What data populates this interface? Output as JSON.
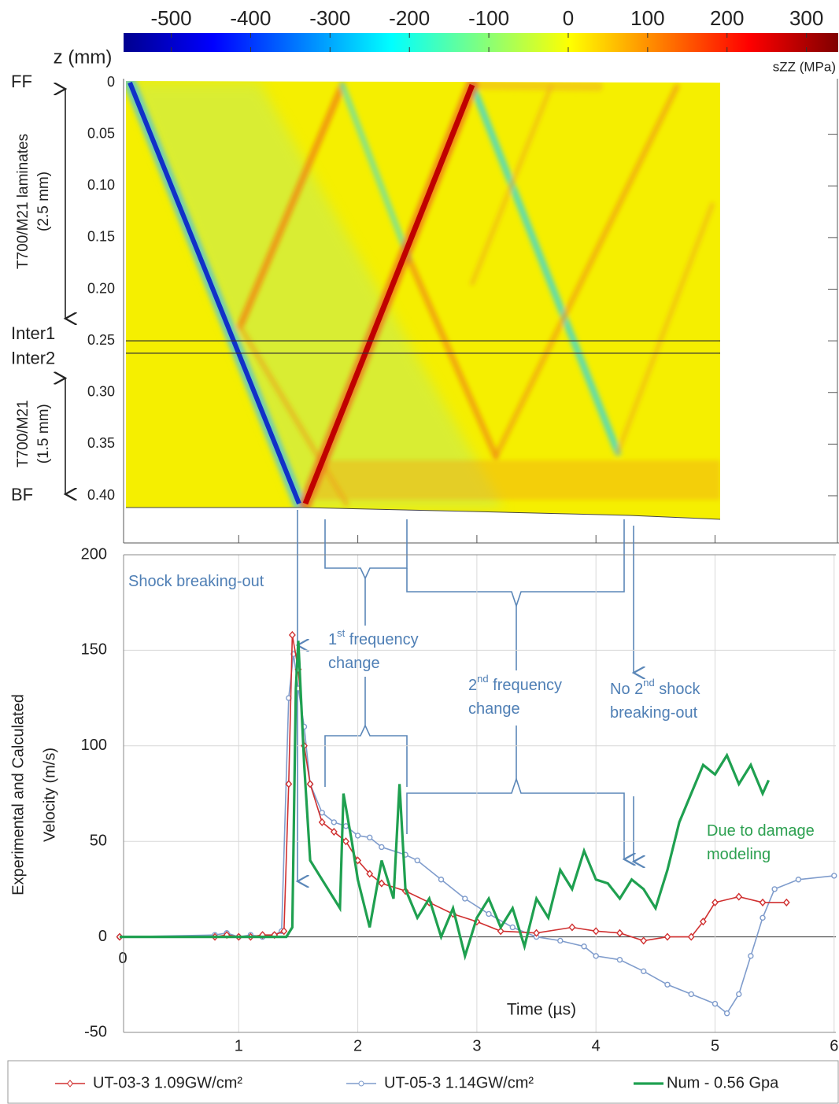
{
  "chart_data": [
    {
      "type": "heatmap",
      "colorbar_label": "sZZ (MPa)",
      "colormap": "jet",
      "clim": [
        -560,
        340
      ],
      "cticks": [
        -500,
        -400,
        -300,
        -200,
        -100,
        0,
        100,
        200,
        300
      ],
      "y_label": "z (mm)",
      "ylim": [
        0,
        0.4
      ],
      "yticks": [
        0,
        0.05,
        {
          "value": 0.1,
          "label": "0.10"
        },
        0.15,
        {
          "value": 0.2,
          "label": "0.20"
        },
        0.25,
        {
          "value": 0.3,
          "label": "0.30"
        },
        0.35,
        {
          "value": 0.4,
          "label": "0.40"
        }
      ],
      "xlim": [
        0,
        6
      ],
      "xticks": [
        1,
        2,
        3,
        4,
        5
      ],
      "interfaces": [
        {
          "name": "FF",
          "z": 0
        },
        {
          "name": "Inter1",
          "z": 0.25
        },
        {
          "name": "Inter2",
          "z": 0.262
        },
        {
          "name": "BF",
          "z": 0.4
        }
      ],
      "regions": [
        {
          "label": [
            "T700/M21 laminates",
            "(2.5 mm)"
          ],
          "from": 0,
          "to": 0.23
        },
        {
          "label": [
            "T700/M21",
            "(1.5 mm)"
          ],
          "from": 0.28,
          "to": 0.4
        }
      ]
    },
    {
      "type": "line",
      "x_label": "Time (µs)",
      "y_label": [
        "Experimental and Calculated",
        "Velocity (m/s)"
      ],
      "xlim": [
        0,
        6
      ],
      "ylim": [
        -50,
        200
      ],
      "xticks": [
        0,
        1,
        2,
        3,
        4,
        5,
        6
      ],
      "yticks": [
        -50,
        0,
        50,
        100,
        150,
        200
      ],
      "grid": true,
      "legend": "bottom",
      "series": [
        {
          "name": "UT-03-3 1.09GW/cm²",
          "color": "#d03030",
          "marker": "diamond",
          "x": [
            0,
            0.8,
            0.9,
            1.0,
            1.1,
            1.2,
            1.3,
            1.38,
            1.42,
            1.45,
            1.5,
            1.55,
            1.6,
            1.7,
            1.8,
            1.9,
            2.0,
            2.1,
            2.2,
            2.4,
            2.6,
            2.8,
            3.0,
            3.2,
            3.5,
            3.8,
            4.0,
            4.2,
            4.4,
            4.6,
            4.8,
            4.9,
            5.0,
            5.2,
            5.4,
            5.6
          ],
          "values": [
            0,
            0,
            1,
            0,
            0,
            1,
            1,
            3,
            80,
            158,
            140,
            100,
            80,
            60,
            55,
            50,
            40,
            33,
            28,
            24,
            18,
            12,
            8,
            3,
            2,
            5,
            3,
            2,
            -2,
            0,
            0,
            8,
            18,
            21,
            18,
            18
          ]
        },
        {
          "name": "UT-05-3 1.14GW/cm²",
          "color": "#7f9ccc",
          "marker": "circle",
          "x": [
            0,
            0.8,
            0.9,
            1.0,
            1.1,
            1.2,
            1.3,
            1.36,
            1.42,
            1.46,
            1.5,
            1.55,
            1.6,
            1.7,
            1.8,
            1.9,
            2.0,
            2.1,
            2.2,
            2.4,
            2.5,
            2.7,
            2.9,
            3.1,
            3.3,
            3.5,
            3.7,
            3.9,
            4.0,
            4.2,
            4.4,
            4.6,
            4.8,
            5.0,
            5.1,
            5.2,
            5.3,
            5.4,
            5.5,
            5.7,
            6.0
          ],
          "values": [
            0,
            1,
            2,
            0,
            1,
            0,
            1,
            3,
            125,
            148,
            130,
            110,
            80,
            65,
            60,
            58,
            53,
            52,
            47,
            43,
            40,
            30,
            20,
            12,
            5,
            0,
            -2,
            -5,
            -10,
            -12,
            -18,
            -25,
            -30,
            -35,
            -40,
            -30,
            -10,
            10,
            25,
            30,
            32
          ]
        },
        {
          "name": "Num - 0.56 Gpa",
          "color": "#1fa050",
          "marker": "none",
          "x": [
            0,
            1.0,
            1.4,
            1.45,
            1.48,
            1.5,
            1.55,
            1.6,
            1.7,
            1.8,
            1.85,
            1.88,
            1.95,
            2.0,
            2.1,
            2.2,
            2.3,
            2.35,
            2.4,
            2.5,
            2.6,
            2.7,
            2.8,
            2.9,
            3.0,
            3.1,
            3.2,
            3.3,
            3.4,
            3.5,
            3.6,
            3.7,
            3.8,
            3.9,
            4.0,
            4.1,
            4.2,
            4.3,
            4.4,
            4.5,
            4.6,
            4.7,
            4.8,
            4.9,
            5.0,
            5.1,
            5.2,
            5.3,
            5.4,
            5.45
          ],
          "values": [
            0,
            0,
            0,
            5,
            130,
            155,
            90,
            40,
            30,
            20,
            15,
            75,
            50,
            30,
            5,
            40,
            20,
            80,
            25,
            10,
            20,
            0,
            15,
            -10,
            10,
            20,
            5,
            15,
            -5,
            20,
            10,
            35,
            25,
            45,
            30,
            28,
            20,
            30,
            25,
            15,
            35,
            60,
            75,
            90,
            85,
            95,
            80,
            90,
            75,
            82
          ]
        }
      ],
      "annotations": [
        {
          "lines": [
            [
              "Shock breaking-out"
            ]
          ],
          "color": "#4f7fb5"
        },
        {
          "lines": [
            [
              "1",
              "st",
              " frequency"
            ],
            [
              "change"
            ]
          ],
          "color": "#4f7fb5"
        },
        {
          "lines": [
            [
              "2",
              "nd",
              " frequency"
            ],
            [
              "change"
            ]
          ],
          "color": "#4f7fb5"
        },
        {
          "lines": [
            [
              "No 2",
              "nd",
              " shock"
            ],
            [
              "breaking-out"
            ]
          ],
          "color": "#4f7fb5"
        },
        {
          "lines": [
            [
              "Due to damage"
            ],
            [
              "modeling"
            ]
          ],
          "color": "#2ca050"
        }
      ]
    }
  ]
}
